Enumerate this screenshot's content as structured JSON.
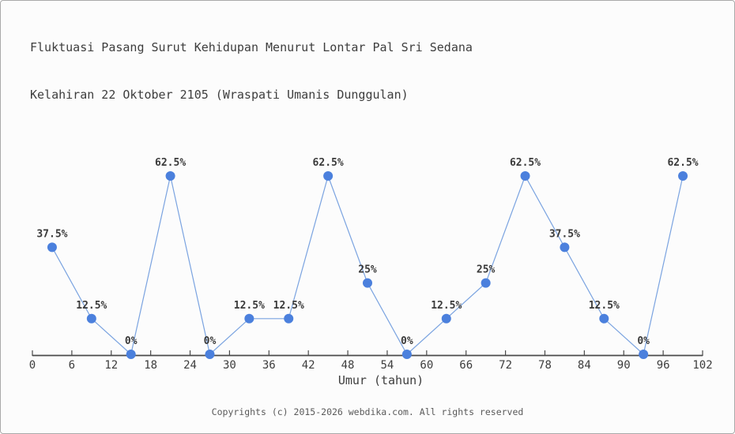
{
  "title": {
    "line1": "Fluktuasi Pasang Surut Kehidupan Menurut Lontar Pal Sri Sedana",
    "line2": "Kelahiran 22 Oktober 2105 (Wraspati Umanis Dunggulan)"
  },
  "footer": {
    "copyright": "Copyrights (c) 2015-2026 webdika.com. All rights reserved"
  },
  "chart_data": {
    "type": "line",
    "title": "Fluktuasi Pasang Surut Kehidupan Menurut Lontar Pal Sri Sedana Kelahiran 22 Oktober 2105 (Wraspati Umanis Dunggulan)",
    "xlabel": "Umur (tahun)",
    "ylabel": "",
    "x": [
      3,
      9,
      15,
      21,
      27,
      33,
      39,
      45,
      51,
      57,
      63,
      69,
      75,
      81,
      87,
      93,
      99
    ],
    "values": [
      37.5,
      12.5,
      0,
      62.5,
      0,
      12.5,
      12.5,
      62.5,
      25,
      0,
      12.5,
      25,
      62.5,
      37.5,
      12.5,
      0,
      62.5
    ],
    "point_labels": [
      "37.5%",
      "12.5%",
      "0%",
      "62.5%",
      "0%",
      "12.5%",
      "12.5%",
      "62.5%",
      "25%",
      "0%",
      "12.5%",
      "25%",
      "62.5%",
      "37.5%",
      "12.5%",
      "0%",
      "62.5%"
    ],
    "x_ticks": [
      0,
      6,
      12,
      18,
      24,
      30,
      36,
      42,
      48,
      54,
      60,
      66,
      72,
      78,
      84,
      90,
      96,
      102
    ],
    "xlim": [
      0,
      102
    ],
    "ylim": [
      0,
      62.5
    ],
    "grid": false,
    "legend": "none",
    "colors": {
      "line": "#7aa3e0",
      "marker": "#4b80dd",
      "axis": "#4a4a4a",
      "label_text": "#3a3a3a"
    }
  }
}
